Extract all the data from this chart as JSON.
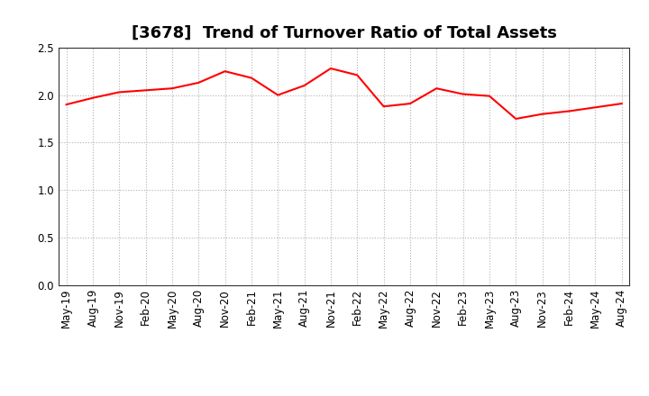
{
  "title": "[3678]  Trend of Turnover Ratio of Total Assets",
  "x_labels": [
    "May-19",
    "Aug-19",
    "Nov-19",
    "Feb-20",
    "May-20",
    "Aug-20",
    "Nov-20",
    "Feb-21",
    "May-21",
    "Aug-21",
    "Nov-21",
    "Feb-22",
    "May-22",
    "Aug-22",
    "Nov-22",
    "Feb-23",
    "May-23",
    "Aug-23",
    "Nov-23",
    "Feb-24",
    "May-24",
    "Aug-24"
  ],
  "values": [
    1.9,
    1.97,
    2.03,
    2.05,
    2.07,
    2.13,
    2.25,
    2.18,
    2.0,
    2.1,
    2.28,
    2.21,
    1.88,
    1.91,
    2.07,
    2.01,
    1.99,
    1.75,
    1.8,
    1.83,
    1.87,
    1.91
  ],
  "line_color": "#FF0000",
  "line_width": 1.5,
  "ylim": [
    0.0,
    2.5
  ],
  "yticks": [
    0.0,
    0.5,
    1.0,
    1.5,
    2.0,
    2.5
  ],
  "background_color": "#ffffff",
  "grid_color": "#b0b0b0",
  "title_fontsize": 13,
  "tick_fontsize": 8.5
}
